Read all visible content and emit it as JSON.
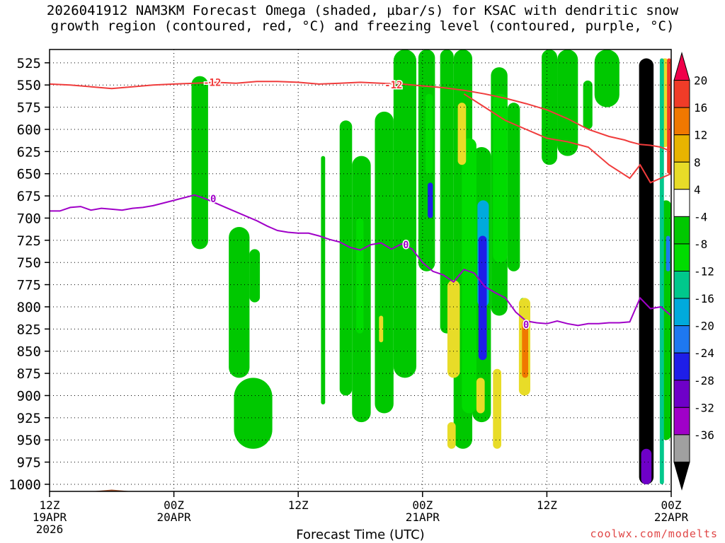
{
  "title_line1": "2026041912 NAM3KM Forecast Omega (shaded, µbar/s) for KSAC with dendritic snow",
  "title_line2": "growth region (contoured, red, °C) and freezing level (contoured, purple, °C)",
  "watermark": "coolwx.com/modelts",
  "chart_data": {
    "type": "heatmap",
    "xlabel": "Forecast Time (UTC)",
    "x_ticks": [
      {
        "hour": 0,
        "lines": [
          "12Z",
          "19APR",
          "2026"
        ]
      },
      {
        "hour": 12,
        "lines": [
          "00Z",
          "20APR"
        ]
      },
      {
        "hour": 24,
        "lines": [
          "12Z"
        ]
      },
      {
        "hour": 36,
        "lines": [
          "00Z",
          "21APR"
        ]
      },
      {
        "hour": 48,
        "lines": [
          "12Z"
        ]
      },
      {
        "hour": 60,
        "lines": [
          "00Z",
          "22APR"
        ]
      }
    ],
    "y_ticks": [
      525,
      550,
      575,
      600,
      625,
      650,
      675,
      700,
      725,
      750,
      775,
      800,
      825,
      850,
      875,
      900,
      925,
      950,
      975,
      1000
    ],
    "x_range": [
      0,
      60
    ],
    "y_range_hPa": [
      510,
      1008
    ],
    "colorbar": {
      "labels": [
        "20",
        "16",
        "12",
        "8",
        "4",
        "-4",
        "-8",
        "-12",
        "-16",
        "-20",
        "-24",
        "-28",
        "-32",
        "-36"
      ],
      "colors": [
        "#f0004a",
        "#f03c28",
        "#f07800",
        "#e8b400",
        "#e8dc28",
        "#ffffff",
        "#00c800",
        "#00dc00",
        "#00c88c",
        "#00aadc",
        "#1e78f0",
        "#1e1ee8",
        "#6e00c8",
        "#a000c8",
        "#a0a0a0",
        "#000000"
      ]
    },
    "omega_cells": [
      {
        "t": [
          13.7,
          15.3
        ],
        "p": [
          735,
          540
        ],
        "v": -5
      },
      {
        "t": [
          17.3,
          19.3
        ],
        "p": [
          880,
          710
        ],
        "v": -5
      },
      {
        "t": [
          19.3,
          20.3
        ],
        "p": [
          795,
          735
        ],
        "v": -5
      },
      {
        "t": [
          17.8,
          21.5
        ],
        "p": [
          960,
          880
        ],
        "v": -5
      },
      {
        "t": [
          26.2,
          26.6
        ],
        "p": [
          910,
          630
        ],
        "v": -5
      },
      {
        "t": [
          28.0,
          29.2
        ],
        "p": [
          900,
          590
        ],
        "v": -5
      },
      {
        "t": [
          29.2,
          31.0
        ],
        "p": [
          930,
          630
        ],
        "v": -5
      },
      {
        "t": [
          31.4,
          33.2
        ],
        "p": [
          920,
          580
        ],
        "v": -5
      },
      {
        "t": [
          33.2,
          35.4
        ],
        "p": [
          880,
          510
        ],
        "v": -5
      },
      {
        "t": [
          35.6,
          37.2
        ],
        "p": [
          760,
          510
        ],
        "v": -5
      },
      {
        "t": [
          37.7,
          39.0
        ],
        "p": [
          830,
          510
        ],
        "v": -5
      },
      {
        "t": [
          39.0,
          40.8
        ],
        "p": [
          960,
          510
        ],
        "v": -5
      },
      {
        "t": [
          40.8,
          42.6
        ],
        "p": [
          930,
          620
        ],
        "v": -5
      },
      {
        "t": [
          42.6,
          44.2
        ],
        "p": [
          810,
          530
        ],
        "v": -5
      },
      {
        "t": [
          44.2,
          45.4
        ],
        "p": [
          760,
          570
        ],
        "v": -5
      },
      {
        "t": [
          47.5,
          49.0
        ],
        "p": [
          640,
          510
        ],
        "v": -5
      },
      {
        "t": [
          49.0,
          51.0
        ],
        "p": [
          630,
          510
        ],
        "v": -5
      },
      {
        "t": [
          51.5,
          52.4
        ],
        "p": [
          600,
          545
        ],
        "v": -5
      },
      {
        "t": [
          52.6,
          55.0
        ],
        "p": [
          575,
          510
        ],
        "v": -5
      },
      {
        "t": [
          59.0,
          60.0
        ],
        "p": [
          950,
          680
        ],
        "v": -5
      },
      {
        "t": [
          29.6,
          30.3
        ],
        "p": [
          830,
          700
        ],
        "v": -10
      },
      {
        "t": [
          36.3,
          37.0
        ],
        "p": [
          650,
          560
        ],
        "v": -10
      },
      {
        "t": [
          39.8,
          41.2
        ],
        "p": [
          920,
          610
        ],
        "v": -10
      },
      {
        "t": [
          42.8,
          44.2
        ],
        "p": [
          750,
          560
        ],
        "v": -10
      },
      {
        "t": [
          45.4,
          46.0
        ],
        "p": [
          850,
          790
        ],
        "v": -10
      },
      {
        "t": [
          41.3,
          42.4
        ],
        "p": [
          800,
          680
        ],
        "v": -18
      },
      {
        "t": [
          41.4,
          42.2
        ],
        "p": [
          860,
          720
        ],
        "v": -26
      },
      {
        "t": [
          36.5,
          37.0
        ],
        "p": [
          700,
          660
        ],
        "v": -26
      },
      {
        "t": [
          38.4,
          39.6
        ],
        "p": [
          880,
          770
        ],
        "v": 6
      },
      {
        "t": [
          41.2,
          42.0
        ],
        "p": [
          920,
          880
        ],
        "v": 6
      },
      {
        "t": [
          42.8,
          43.6
        ],
        "p": [
          960,
          870
        ],
        "v": 6
      },
      {
        "t": [
          45.3,
          46.4
        ],
        "p": [
          900,
          790
        ],
        "v": 6
      },
      {
        "t": [
          45.6,
          46.2
        ],
        "p": [
          880,
          815
        ],
        "v": 14
      },
      {
        "t": [
          38.4,
          39.2
        ],
        "p": [
          960,
          930
        ],
        "v": 6
      },
      {
        "t": [
          39.4,
          40.2
        ],
        "p": [
          640,
          570
        ],
        "v": 6
      },
      {
        "t": [
          31.8,
          32.2
        ],
        "p": [
          840,
          810
        ],
        "v": 6
      },
      {
        "t": [
          59.0,
          59.8
        ],
        "p": [
          620,
          520
        ],
        "v": 6
      },
      {
        "t": [
          58.9,
          59.3
        ],
        "p": [
          1000,
          520
        ],
        "v": -14
      },
      {
        "t": [
          59.6,
          60.0
        ],
        "p": [
          650,
          520
        ],
        "v": 18
      },
      {
        "t": [
          56.9,
          58.3
        ],
        "p": [
          1000,
          520
        ],
        "v": -40
      },
      {
        "t": [
          57.1,
          58.1
        ],
        "p": [
          1000,
          960
        ],
        "v": -30
      },
      {
        "t": [
          59.5,
          59.9
        ],
        "p": [
          760,
          720
        ],
        "v": -20
      }
    ],
    "contours": {
      "dendritic": {
        "color": "#f03c3c",
        "labels": [
          {
            "t": 15.7,
            "p": 547,
            "text": "-12"
          },
          {
            "t": 33.2,
            "p": 550,
            "text": "-12"
          }
        ],
        "lines": [
          {
            "t": [
              0,
              2,
              4,
              6,
              8,
              10,
              12,
              14,
              16,
              18,
              20,
              22,
              24,
              26,
              28,
              30,
              32,
              34,
              36,
              38,
              40,
              42,
              44,
              46,
              48,
              50,
              52,
              54,
              55.5,
              56,
              57,
              58,
              59,
              60
            ],
            "p": [
              549,
              550,
              552,
              554,
              552,
              550,
              549,
              548,
              547,
              548,
              546,
              546,
              547,
              549,
              548,
              547,
              548,
              549,
              551,
              553,
              556,
              560,
              565,
              571,
              578,
              588,
              600,
              608,
              612,
              614,
              617,
              618,
              620,
              625
            ]
          },
          {
            "t": [
              40,
              42,
              44,
              46,
              48,
              50,
              52,
              54,
              56,
              57,
              58,
              59,
              60
            ],
            "p": [
              560,
              575,
              590,
              600,
              610,
              614,
              620,
              640,
              655,
              640,
              660,
              655,
              650
            ]
          }
        ]
      },
      "freezing_level": {
        "color": "#a000c8",
        "labels": [
          {
            "t": 15.8,
            "p": 678,
            "text": "0"
          },
          {
            "t": 34.4,
            "p": 730,
            "text": "0"
          },
          {
            "t": 46.0,
            "p": 820,
            "text": "0"
          }
        ],
        "line": {
          "t": [
            0,
            1,
            2,
            3,
            4,
            5,
            6,
            7,
            8,
            9,
            10,
            11,
            12,
            13,
            14,
            15,
            16,
            17,
            18,
            19,
            20,
            21,
            22,
            23,
            24,
            25,
            26,
            27,
            28,
            29,
            30,
            31,
            32,
            33,
            34,
            35,
            36,
            37,
            38,
            39,
            40,
            41,
            42,
            43,
            44,
            45,
            46,
            47,
            48,
            49,
            50,
            51,
            52,
            53,
            54,
            55,
            56,
            57,
            58,
            59,
            60
          ],
          "p": [
            692,
            692,
            688,
            687,
            691,
            689,
            690,
            691,
            689,
            688,
            686,
            683,
            680,
            677,
            674,
            678,
            683,
            688,
            693,
            698,
            703,
            709,
            714,
            716,
            717,
            717,
            720,
            724,
            727,
            733,
            736,
            730,
            728,
            735,
            729,
            735,
            750,
            760,
            764,
            772,
            758,
            762,
            777,
            784,
            790,
            806,
            816,
            818,
            819,
            816,
            819,
            821,
            819,
            819,
            818,
            818,
            817,
            790,
            802,
            800,
            810
          ]
        }
      }
    },
    "terrain": {
      "color": "#a0522d",
      "p_top": [
        1010,
        1009,
        1008,
        1006,
        1008,
        1009,
        1009,
        1009,
        1009,
        1009,
        1009,
        1009,
        1009,
        1009,
        1009,
        1009,
        1008,
        1008,
        1009,
        1009,
        1009,
        1009,
        1009,
        1009,
        1009,
        1009,
        1009,
        1009,
        1009,
        1009,
        1009
      ]
    }
  }
}
